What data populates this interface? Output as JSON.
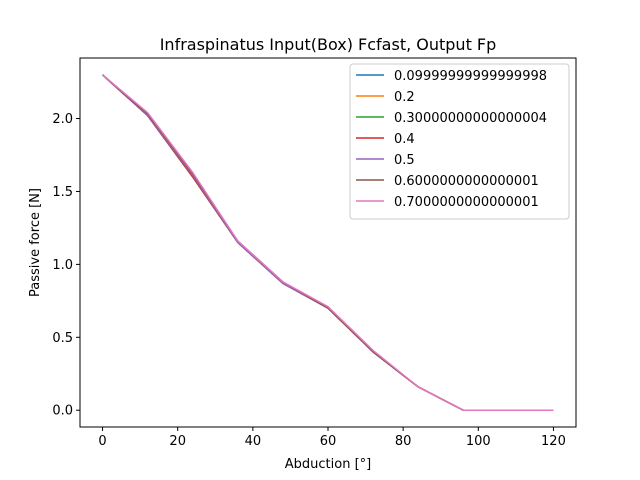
{
  "chart_data": {
    "type": "line",
    "title": "Infraspinatus Input(Box) Fcfast, Output Fp",
    "xlabel": "Abduction [°]",
    "ylabel": "Passive force [N]",
    "xlim": [
      -6,
      126
    ],
    "ylim": [
      -0.115,
      2.415
    ],
    "x_ticks": [
      0,
      20,
      40,
      60,
      80,
      100,
      120
    ],
    "x_tick_labels": [
      "0",
      "20",
      "40",
      "60",
      "80",
      "100",
      "120"
    ],
    "y_ticks": [
      0.0,
      0.5,
      1.0,
      1.5,
      2.0
    ],
    "y_tick_labels": [
      "0.0",
      "0.5",
      "1.0",
      "1.5",
      "2.0"
    ],
    "grid": false,
    "legend_position": "top-right",
    "x": [
      0,
      12,
      24,
      36,
      48,
      60,
      72,
      84,
      96,
      108,
      120
    ],
    "series": [
      {
        "name": "0.09999999999999998",
        "color": "#1f77b4",
        "values": [
          2.3,
          2.02,
          1.6,
          1.15,
          0.87,
          0.7,
          0.4,
          0.16,
          0.0,
          0.0,
          0.0
        ]
      },
      {
        "name": "0.2",
        "color": "#ff7f0e",
        "values": [
          2.3,
          2.02,
          1.6,
          1.15,
          0.87,
          0.7,
          0.4,
          0.16,
          0.0,
          0.0,
          0.0
        ]
      },
      {
        "name": "0.30000000000000004",
        "color": "#2ca02c",
        "values": [
          2.3,
          2.02,
          1.6,
          1.15,
          0.87,
          0.7,
          0.4,
          0.16,
          0.0,
          0.0,
          0.0
        ]
      },
      {
        "name": "0.4",
        "color": "#d62728",
        "values": [
          2.3,
          2.02,
          1.6,
          1.15,
          0.87,
          0.7,
          0.4,
          0.16,
          0.0,
          0.0,
          0.0
        ]
      },
      {
        "name": "0.5",
        "color": "#9467bd",
        "values": [
          2.3,
          2.02,
          1.61,
          1.15,
          0.87,
          0.7,
          0.4,
          0.16,
          0.0,
          0.0,
          0.0
        ]
      },
      {
        "name": "0.6000000000000001",
        "color": "#8c564b",
        "values": [
          2.3,
          2.03,
          1.62,
          1.16,
          0.88,
          0.7,
          0.4,
          0.16,
          0.0,
          0.0,
          0.0
        ]
      },
      {
        "name": "0.7000000000000001",
        "color": "#e377c2",
        "values": [
          2.3,
          2.04,
          1.63,
          1.16,
          0.88,
          0.71,
          0.41,
          0.16,
          0.0,
          0.0,
          0.0
        ]
      }
    ]
  }
}
